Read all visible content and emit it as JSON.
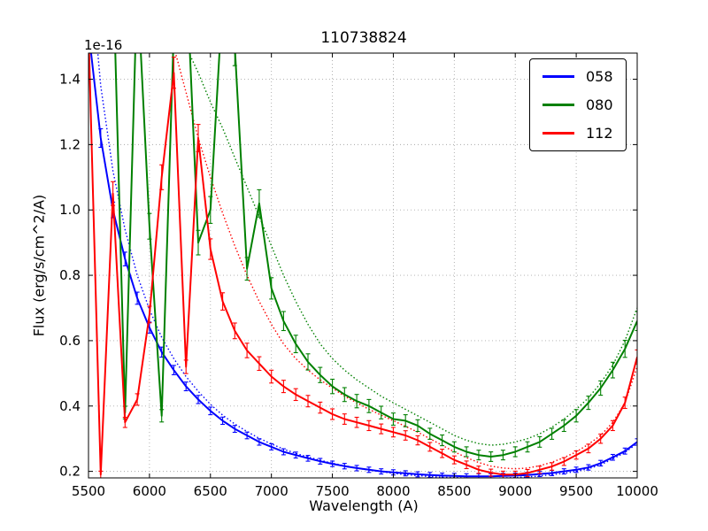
{
  "figure": {
    "title": "110738824",
    "offset_label": "1e-16"
  },
  "chart_data": {
    "type": "line",
    "title": "110738824",
    "xlabel": "Wavelength (A)",
    "ylabel": "Flux (erg/s/cm^2/A)",
    "y_offset_label": "1e-16",
    "xlim": [
      5500,
      10000
    ],
    "ylim": [
      0.18,
      1.48
    ],
    "xticks": [
      5500,
      6000,
      6500,
      7000,
      7500,
      8000,
      8500,
      9000,
      9500,
      10000
    ],
    "yticks": [
      0.2,
      0.4,
      0.6,
      0.8,
      1.0,
      1.2,
      1.4
    ],
    "grid": true,
    "grid_color": "#aaaaaa",
    "legend_position": "upper right",
    "x": [
      5500,
      5600,
      5700,
      5800,
      5900,
      6000,
      6100,
      6200,
      6300,
      6400,
      6500,
      6600,
      6700,
      6800,
      6900,
      7000,
      7100,
      7200,
      7300,
      7400,
      7500,
      7600,
      7700,
      7800,
      7900,
      8000,
      8100,
      8200,
      8300,
      8400,
      8500,
      8600,
      8700,
      8800,
      8900,
      9000,
      9100,
      9200,
      9300,
      9400,
      9500,
      9600,
      9700,
      9800,
      9900,
      10000
    ],
    "series": [
      {
        "name": "058",
        "color": "#0000ff",
        "style": "solid line with error bars, plus dotted model curve",
        "yerr_base": 0.004,
        "yerr_frac": 0.02,
        "y": [
          1.55,
          1.22,
          1.0,
          0.85,
          0.73,
          0.64,
          0.565,
          0.51,
          0.46,
          0.42,
          0.385,
          0.355,
          0.33,
          0.31,
          0.29,
          0.275,
          0.26,
          0.25,
          0.24,
          0.231,
          0.223,
          0.216,
          0.21,
          0.205,
          0.2,
          0.197,
          0.194,
          0.191,
          0.189,
          0.187,
          0.186,
          0.185,
          0.185,
          0.185,
          0.186,
          0.187,
          0.189,
          0.192,
          0.195,
          0.2,
          0.205,
          0.212,
          0.225,
          0.243,
          0.262,
          0.29
        ],
        "model_y": [
          1.8,
          1.38,
          1.12,
          0.94,
          0.8,
          0.695,
          0.61,
          0.545,
          0.49,
          0.445,
          0.405,
          0.372,
          0.345,
          0.322,
          0.301,
          0.284,
          0.268,
          0.255,
          0.244,
          0.234,
          0.225,
          0.217,
          0.21,
          0.204,
          0.199,
          0.194,
          0.19,
          0.187,
          0.184,
          0.182,
          0.181,
          0.18,
          0.179,
          0.179,
          0.18,
          0.181,
          0.183,
          0.186,
          0.19,
          0.194,
          0.2,
          0.208,
          0.22,
          0.238,
          0.258,
          0.285
        ]
      },
      {
        "name": "080",
        "color": "#008000",
        "style": "solid line with error bars, plus dotted model curve",
        "yerr_base": 0.006,
        "yerr_frac": 0.035,
        "y": [
          1.9,
          1.65,
          1.75,
          0.38,
          1.7,
          0.95,
          0.37,
          1.55,
          1.75,
          0.9,
          1.0,
          1.65,
          1.5,
          0.82,
          1.02,
          0.76,
          0.66,
          0.59,
          0.535,
          0.495,
          0.46,
          0.435,
          0.415,
          0.4,
          0.38,
          0.36,
          0.355,
          0.34,
          0.315,
          0.295,
          0.275,
          0.26,
          0.25,
          0.245,
          0.25,
          0.26,
          0.275,
          0.29,
          0.315,
          0.34,
          0.37,
          0.41,
          0.455,
          0.51,
          0.575,
          0.66
        ],
        "model_y": [
          2.6,
          2.4,
          2.25,
          2.1,
          1.95,
          1.82,
          1.7,
          1.6,
          1.5,
          1.42,
          1.33,
          1.25,
          1.16,
          1.07,
          0.98,
          0.89,
          0.8,
          0.72,
          0.65,
          0.59,
          0.545,
          0.51,
          0.48,
          0.455,
          0.43,
          0.41,
          0.39,
          0.37,
          0.35,
          0.33,
          0.31,
          0.295,
          0.285,
          0.28,
          0.283,
          0.29,
          0.3,
          0.315,
          0.335,
          0.36,
          0.39,
          0.425,
          0.47,
          0.525,
          0.6,
          0.7
        ]
      },
      {
        "name": "112",
        "color": "#ff0000",
        "style": "solid line with error bars, plus dotted model curve",
        "yerr_base": 0.005,
        "yerr_frac": 0.03,
        "y": [
          1.55,
          0.19,
          1.05,
          0.35,
          0.42,
          0.68,
          1.1,
          1.42,
          0.52,
          1.22,
          0.88,
          0.72,
          0.63,
          0.57,
          0.53,
          0.49,
          0.46,
          0.435,
          0.415,
          0.395,
          0.375,
          0.36,
          0.35,
          0.34,
          0.33,
          0.32,
          0.31,
          0.295,
          0.275,
          0.255,
          0.235,
          0.22,
          0.205,
          0.196,
          0.19,
          0.19,
          0.195,
          0.205,
          0.215,
          0.23,
          0.25,
          0.27,
          0.3,
          0.34,
          0.41,
          0.55
        ],
        "model_y": [
          2.8,
          2.5,
          2.3,
          2.1,
          1.95,
          1.8,
          1.65,
          1.5,
          1.36,
          1.22,
          1.1,
          0.99,
          0.89,
          0.8,
          0.72,
          0.65,
          0.59,
          0.545,
          0.51,
          0.48,
          0.455,
          0.43,
          0.41,
          0.39,
          0.372,
          0.355,
          0.338,
          0.32,
          0.3,
          0.28,
          0.26,
          0.242,
          0.227,
          0.216,
          0.21,
          0.208,
          0.21,
          0.217,
          0.228,
          0.242,
          0.26,
          0.283,
          0.31,
          0.35,
          0.41,
          0.52
        ]
      }
    ]
  }
}
